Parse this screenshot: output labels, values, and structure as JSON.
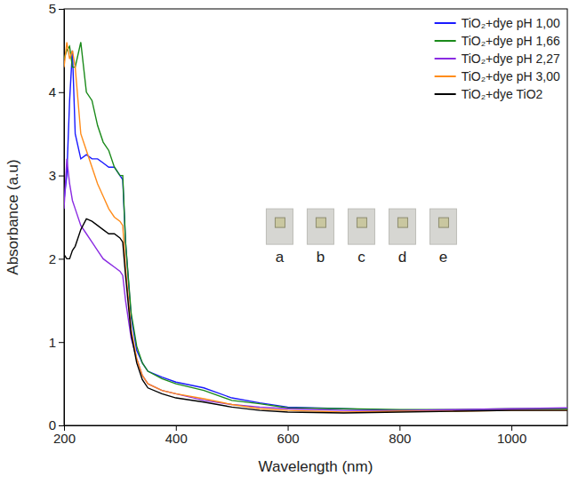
{
  "chart_data": {
    "type": "line",
    "x_label": "Wavelength (nm)",
    "y_label": "Absorbance (a.u)",
    "x": [
      200,
      205,
      210,
      215,
      220,
      230,
      240,
      250,
      260,
      270,
      280,
      290,
      300,
      305,
      310,
      320,
      330,
      340,
      350,
      375,
      400,
      450,
      500,
      550,
      600,
      700,
      800,
      900,
      1000,
      1100
    ],
    "series": [
      {
        "name": "TiO₂+dye pH 1,00",
        "color": "#1a1aff",
        "values": [
          2.7,
          3.0,
          3.9,
          4.5,
          3.5,
          3.2,
          3.25,
          3.2,
          3.2,
          3.15,
          3.1,
          3.1,
          3.0,
          2.95,
          2.2,
          1.3,
          0.9,
          0.75,
          0.65,
          0.58,
          0.52,
          0.45,
          0.33,
          0.27,
          0.22,
          0.2,
          0.18,
          0.18,
          0.19,
          0.2
        ]
      },
      {
        "name": "TiO₂+dye pH 1,66",
        "color": "#1a8a1a",
        "values": [
          4.4,
          4.5,
          4.55,
          4.3,
          4.3,
          4.6,
          4.0,
          3.9,
          3.6,
          3.4,
          3.3,
          3.1,
          3.0,
          3.0,
          2.2,
          1.35,
          0.95,
          0.75,
          0.65,
          0.56,
          0.5,
          0.42,
          0.3,
          0.26,
          0.21,
          0.2,
          0.19,
          0.19,
          0.2,
          0.2
        ]
      },
      {
        "name": "TiO₂+dye pH 2,27",
        "color": "#8a2be2",
        "values": [
          2.6,
          3.2,
          2.9,
          2.7,
          2.6,
          2.4,
          2.3,
          2.2,
          2.1,
          2.0,
          1.95,
          1.9,
          1.85,
          1.8,
          1.5,
          1.05,
          0.8,
          0.6,
          0.5,
          0.42,
          0.38,
          0.3,
          0.25,
          0.22,
          0.2,
          0.18,
          0.18,
          0.19,
          0.2,
          0.21
        ]
      },
      {
        "name": "TiO₂+dye pH 3,00",
        "color": "#ff8c1a",
        "values": [
          4.3,
          4.6,
          4.4,
          4.5,
          4.3,
          3.5,
          3.3,
          3.1,
          2.9,
          2.75,
          2.6,
          2.5,
          2.45,
          2.4,
          1.9,
          1.15,
          0.8,
          0.6,
          0.5,
          0.42,
          0.38,
          0.32,
          0.25,
          0.2,
          0.18,
          0.16,
          0.17,
          0.17,
          0.18,
          0.18
        ]
      },
      {
        "name": "TiO₂+dye TiO2",
        "color": "#000000",
        "values": [
          2.05,
          2.0,
          2.0,
          2.1,
          2.15,
          2.35,
          2.48,
          2.45,
          2.4,
          2.35,
          2.3,
          2.3,
          2.25,
          2.2,
          1.8,
          1.1,
          0.75,
          0.55,
          0.45,
          0.38,
          0.33,
          0.28,
          0.22,
          0.18,
          0.16,
          0.15,
          0.16,
          0.17,
          0.18,
          0.18
        ]
      }
    ],
    "xlim": [
      200,
      1100
    ],
    "xticks": [
      200,
      400,
      600,
      800,
      1000
    ],
    "ylim": [
      0,
      5
    ],
    "yticks": [
      0,
      1,
      2,
      3,
      4,
      5
    ],
    "legend": "upper right",
    "annotations": [
      "a",
      "b",
      "c",
      "d",
      "e"
    ]
  }
}
